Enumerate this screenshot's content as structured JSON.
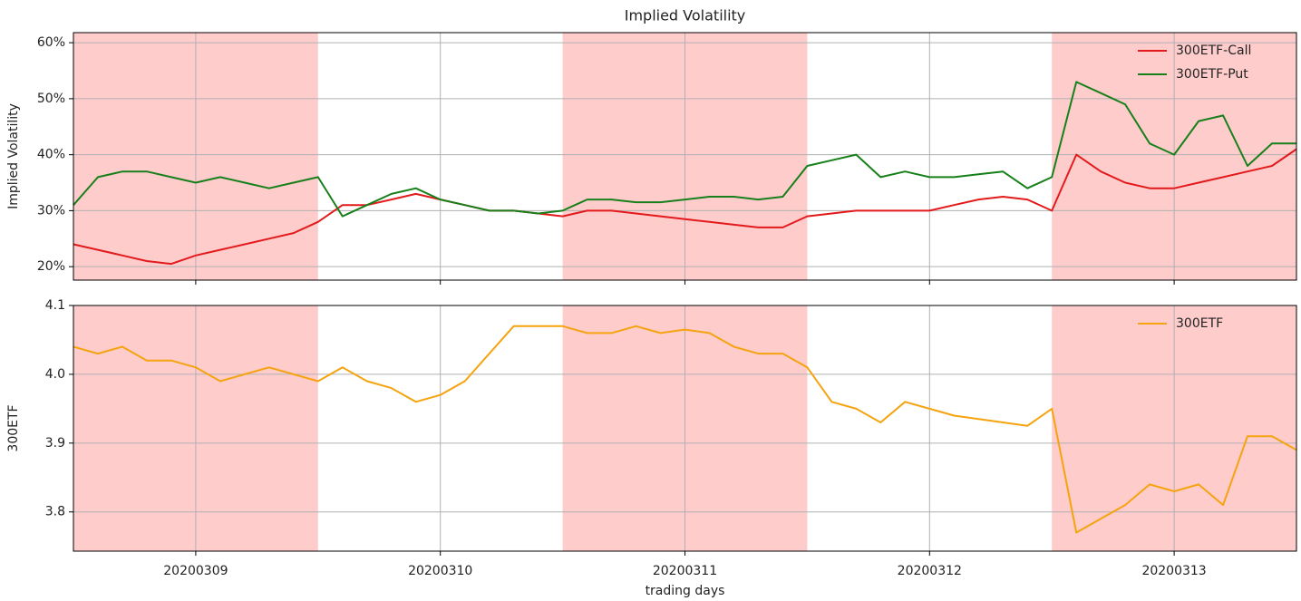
{
  "chart_data": [
    {
      "type": "line",
      "title": "Implied Volatility",
      "ylabel": "Implied Volatility",
      "x": [
        0,
        0.1,
        0.2,
        0.3,
        0.4,
        0.5,
        0.6,
        0.7,
        0.8,
        0.9,
        1,
        1.1,
        1.2,
        1.3,
        1.4,
        1.5,
        1.6,
        1.7,
        1.8,
        1.9,
        2,
        2.1,
        2.2,
        2.3,
        2.4,
        2.5,
        2.6,
        2.7,
        2.8,
        2.9,
        3,
        3.1,
        3.2,
        3.3,
        3.4,
        3.5,
        3.6,
        3.7,
        3.8,
        3.9,
        4,
        4.1,
        4.2,
        4.3,
        4.4,
        4.5,
        4.6,
        4.7,
        4.8,
        4.9,
        5
      ],
      "series": [
        {
          "name": "300ETF-Call",
          "color": "#e31a1c",
          "values": [
            24,
            23,
            22,
            21,
            20.5,
            22,
            23,
            24,
            25,
            26,
            28,
            31,
            31,
            32,
            33,
            32,
            31,
            30,
            30,
            29.5,
            29,
            30,
            30,
            29.5,
            29,
            28.5,
            28,
            27.5,
            27,
            27,
            29,
            29.5,
            30,
            30,
            30,
            30,
            31,
            32,
            32.5,
            32,
            30,
            40,
            37,
            35,
            34,
            34,
            35,
            36,
            37,
            38,
            41
          ]
        },
        {
          "name": "300ETF-Put",
          "color": "#17801a",
          "values": [
            31,
            36,
            37,
            37,
            36,
            35,
            36,
            35,
            34,
            35,
            36,
            29,
            31,
            33,
            34,
            32,
            31,
            30,
            30,
            29.5,
            30,
            32,
            32,
            31.5,
            31.5,
            32,
            32.5,
            32.5,
            32,
            32.5,
            38,
            39,
            40,
            36,
            37,
            36,
            36,
            36.5,
            37,
            34,
            36,
            53,
            51,
            49,
            42,
            40,
            46,
            47,
            38,
            42,
            42
          ]
        }
      ],
      "xlim": [
        0,
        5
      ],
      "xticks": [
        0.5,
        1.5,
        2.5,
        3.5,
        4.5
      ],
      "ylim": [
        17.6,
        61.8
      ],
      "yticks": [
        {
          "value": 20,
          "label": "20%"
        },
        {
          "value": 30,
          "label": "30%"
        },
        {
          "value": 40,
          "label": "40%"
        },
        {
          "value": 50,
          "label": "50%"
        },
        {
          "value": 60,
          "label": "60%"
        }
      ],
      "grid": true,
      "legend": "upper right",
      "shaded_spans": [
        [
          0,
          1
        ],
        [
          2,
          3
        ],
        [
          4,
          5
        ]
      ],
      "shade_color": "#ffcccc"
    },
    {
      "type": "line",
      "ylabel": "300ETF",
      "xlabel": "trading days",
      "x": [
        0,
        0.1,
        0.2,
        0.3,
        0.4,
        0.5,
        0.6,
        0.7,
        0.8,
        0.9,
        1,
        1.1,
        1.2,
        1.3,
        1.4,
        1.5,
        1.6,
        1.7,
        1.8,
        1.9,
        2,
        2.1,
        2.2,
        2.3,
        2.4,
        2.5,
        2.6,
        2.7,
        2.8,
        2.9,
        3,
        3.1,
        3.2,
        3.3,
        3.4,
        3.5,
        3.6,
        3.7,
        3.8,
        3.9,
        4,
        4.1,
        4.2,
        4.3,
        4.4,
        4.5,
        4.6,
        4.7,
        4.8,
        4.9,
        5
      ],
      "series": [
        {
          "name": "300ETF",
          "color": "#f5a30f",
          "values": [
            4.04,
            4.03,
            4.04,
            4.02,
            4.02,
            4.01,
            3.99,
            4.0,
            4.01,
            4.0,
            3.99,
            4.01,
            3.99,
            3.98,
            3.96,
            3.97,
            3.99,
            4.03,
            4.07,
            4.07,
            4.07,
            4.06,
            4.06,
            4.07,
            4.06,
            4.065,
            4.06,
            4.04,
            4.03,
            4.03,
            4.01,
            3.96,
            3.95,
            3.93,
            3.96,
            3.95,
            3.94,
            3.935,
            3.93,
            3.925,
            3.95,
            3.77,
            3.79,
            3.81,
            3.84,
            3.83,
            3.84,
            3.81,
            3.91,
            3.91,
            3.89
          ]
        }
      ],
      "xlim": [
        0,
        5
      ],
      "xticks": [
        {
          "value": 0.5,
          "label": "20200309"
        },
        {
          "value": 1.5,
          "label": "20200310"
        },
        {
          "value": 2.5,
          "label": "20200311"
        },
        {
          "value": 3.5,
          "label": "20200312"
        },
        {
          "value": 4.5,
          "label": "20200313"
        }
      ],
      "ylim": [
        3.743,
        4.1
      ],
      "yticks": [
        3.8,
        3.9,
        {
          "value": 4.0,
          "label": "4.0"
        },
        4.1
      ],
      "grid": true,
      "legend": "upper right",
      "shaded_spans": [
        [
          0,
          1
        ],
        [
          2,
          3
        ],
        [
          4,
          5
        ]
      ],
      "shade_color": "#ffcccc"
    }
  ]
}
